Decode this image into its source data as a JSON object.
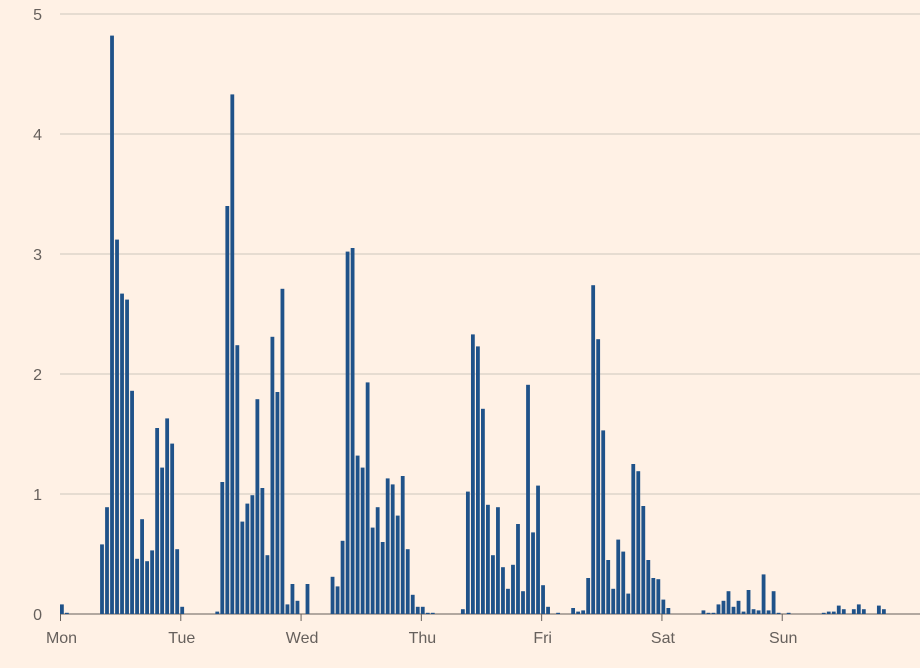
{
  "chart_data": {
    "type": "bar",
    "title": "",
    "xlabel": "",
    "ylabel": "",
    "ylim": [
      0,
      5
    ],
    "yticks": [
      0,
      1,
      2,
      3,
      4,
      5
    ],
    "grid": true,
    "x_unit": "hour of week (24 bars per day)",
    "xticks": [
      {
        "label": "Mon",
        "hour": 0
      },
      {
        "label": "Tue",
        "hour": 24
      },
      {
        "label": "Wed",
        "hour": 48
      },
      {
        "label": "Thu",
        "hour": 72
      },
      {
        "label": "Fri",
        "hour": 96
      },
      {
        "label": "Sat",
        "hour": 120
      },
      {
        "label": "Sun",
        "hour": 144
      }
    ],
    "values": [
      0.08,
      0.01,
      0,
      0,
      0,
      0,
      0,
      0,
      0.58,
      0.89,
      4.82,
      3.12,
      2.67,
      2.62,
      1.86,
      0.46,
      0.79,
      0.44,
      0.53,
      1.55,
      1.22,
      1.63,
      1.42,
      0.54,
      0.06,
      0,
      0,
      0,
      0,
      0,
      0,
      0.02,
      1.1,
      3.4,
      4.33,
      2.24,
      0.77,
      0.92,
      0.99,
      1.79,
      1.05,
      0.49,
      2.31,
      1.85,
      2.71,
      0.08,
      0.25,
      0.11,
      0,
      0.25,
      0,
      0,
      0,
      0,
      0.31,
      0.23,
      0.61,
      3.02,
      3.05,
      1.32,
      1.22,
      1.93,
      0.72,
      0.89,
      0.6,
      1.13,
      1.08,
      0.82,
      1.15,
      0.54,
      0.16,
      0.06,
      0.06,
      0.01,
      0.01,
      0,
      0,
      0,
      0,
      0,
      0.04,
      1.02,
      2.33,
      2.23,
      1.71,
      0.91,
      0.49,
      0.89,
      0.39,
      0.21,
      0.41,
      0.75,
      0.19,
      1.91,
      0.68,
      1.07,
      0.24,
      0.06,
      0,
      0.01,
      0,
      0,
      0.05,
      0.02,
      0.03,
      0.3,
      2.74,
      2.29,
      1.53,
      0.45,
      0.21,
      0.62,
      0.52,
      0.17,
      1.25,
      1.19,
      0.9,
      0.45,
      0.3,
      0.29,
      0.12,
      0.05,
      0,
      0,
      0,
      0,
      0,
      0,
      0.03,
      0.01,
      0.01,
      0.08,
      0.11,
      0.19,
      0.06,
      0.11,
      0.02,
      0.2,
      0.04,
      0.03,
      0.33,
      0.03,
      0.19,
      0.01,
      0,
      0.01,
      0,
      0,
      0,
      0,
      0,
      0,
      0.01,
      0.02,
      0.02,
      0.07,
      0.04,
      0,
      0.04,
      0.08,
      0.04,
      0,
      0,
      0.07,
      0.04
    ],
    "colors": {
      "bar": "#1f5289",
      "grid": "#cec6bd",
      "axis": "#66605c",
      "background": "#fff1e5"
    }
  }
}
